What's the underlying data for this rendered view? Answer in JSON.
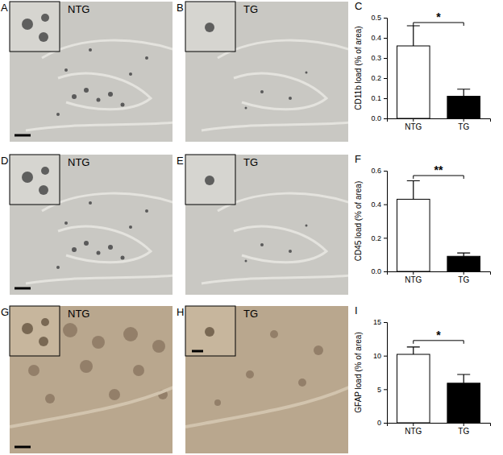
{
  "images": [
    {
      "panel": "A",
      "label": "NTG"
    },
    {
      "panel": "B",
      "label": "TG"
    },
    {
      "panel": "D",
      "label": "NTG"
    },
    {
      "panel": "E",
      "label": "TG"
    },
    {
      "panel": "G",
      "label": "NTG"
    },
    {
      "panel": "H",
      "label": "TG"
    }
  ],
  "chart_data": [
    {
      "type": "bar",
      "title": "C",
      "y_label": "CD11b load (% of area)",
      "categories": [
        "NTG",
        "TG"
      ],
      "values": [
        0.36,
        0.11
      ],
      "errors": [
        0.1,
        0.035
      ],
      "colors": [
        "#ffffff",
        "#000000"
      ],
      "ylim": [
        0,
        0.5
      ],
      "yticks": [
        {
          "value": 0,
          "label": "0.0"
        },
        0.1,
        0.2,
        0.3,
        0.4,
        0.5
      ],
      "annotations": [
        "*"
      ]
    },
    {
      "type": "bar",
      "title": "F",
      "y_label": "CD45 load (% of area)",
      "categories": [
        "NTG",
        "TG"
      ],
      "values": [
        0.43,
        0.09
      ],
      "errors": [
        0.11,
        0.02
      ],
      "colors": [
        "#ffffff",
        "#000000"
      ],
      "ylim": [
        0,
        0.6
      ],
      "yticks": [
        {
          "value": 0,
          "label": "0.0"
        },
        0.2,
        0.4,
        0.6
      ],
      "annotations": [
        "**"
      ]
    },
    {
      "type": "bar",
      "title": "I",
      "y_label": "GFAP load (% of area)",
      "categories": [
        "NTG",
        "TG"
      ],
      "values": [
        10.2,
        5.9
      ],
      "errors": [
        1.1,
        1.3
      ],
      "colors": [
        "#ffffff",
        "#000000"
      ],
      "ylim": [
        0,
        15
      ],
      "yticks": [
        0,
        5,
        10,
        15
      ],
      "annotations": [
        "*"
      ]
    }
  ]
}
